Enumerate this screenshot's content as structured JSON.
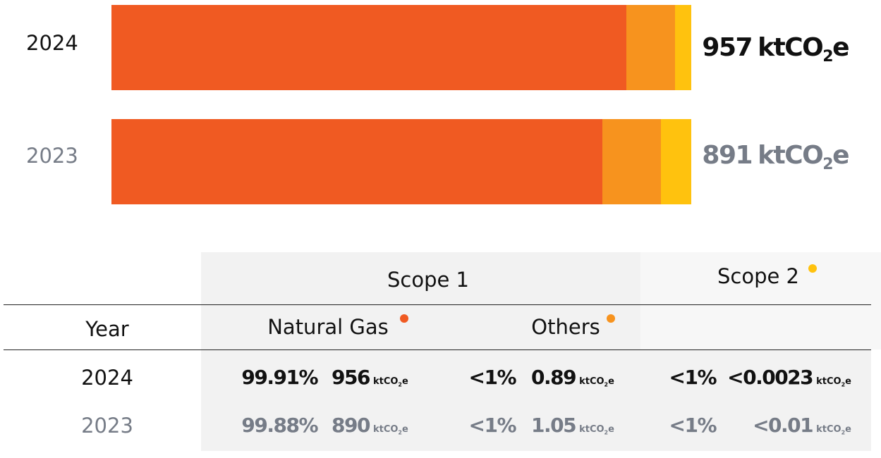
{
  "bars": [
    {
      "year": "2024",
      "total": 957
    },
    {
      "year": "2023",
      "total": 891
    }
  ],
  "unit": {
    "base": "ktCO",
    "subscript": "2",
    "suffix": "e"
  },
  "table": {
    "header": {
      "scope1": "Scope 1",
      "scope2": "Scope 2",
      "year": "Year",
      "natural_gas": "Natural Gas",
      "others": "Others"
    },
    "rows": [
      {
        "year": "2024",
        "gas_share": "99.91%",
        "gas_value": 956,
        "others_share": "<1%",
        "others_value": 0.89,
        "scope2_share": "<1%",
        "scope2_value": "<0.0023"
      },
      {
        "year": "2023",
        "gas_share": "99.88%",
        "gas_value": 890,
        "others_share": "<1%",
        "others_value": 1.05,
        "scope2_share": "<1%",
        "scope2_value": "<0.01"
      }
    ]
  }
}
